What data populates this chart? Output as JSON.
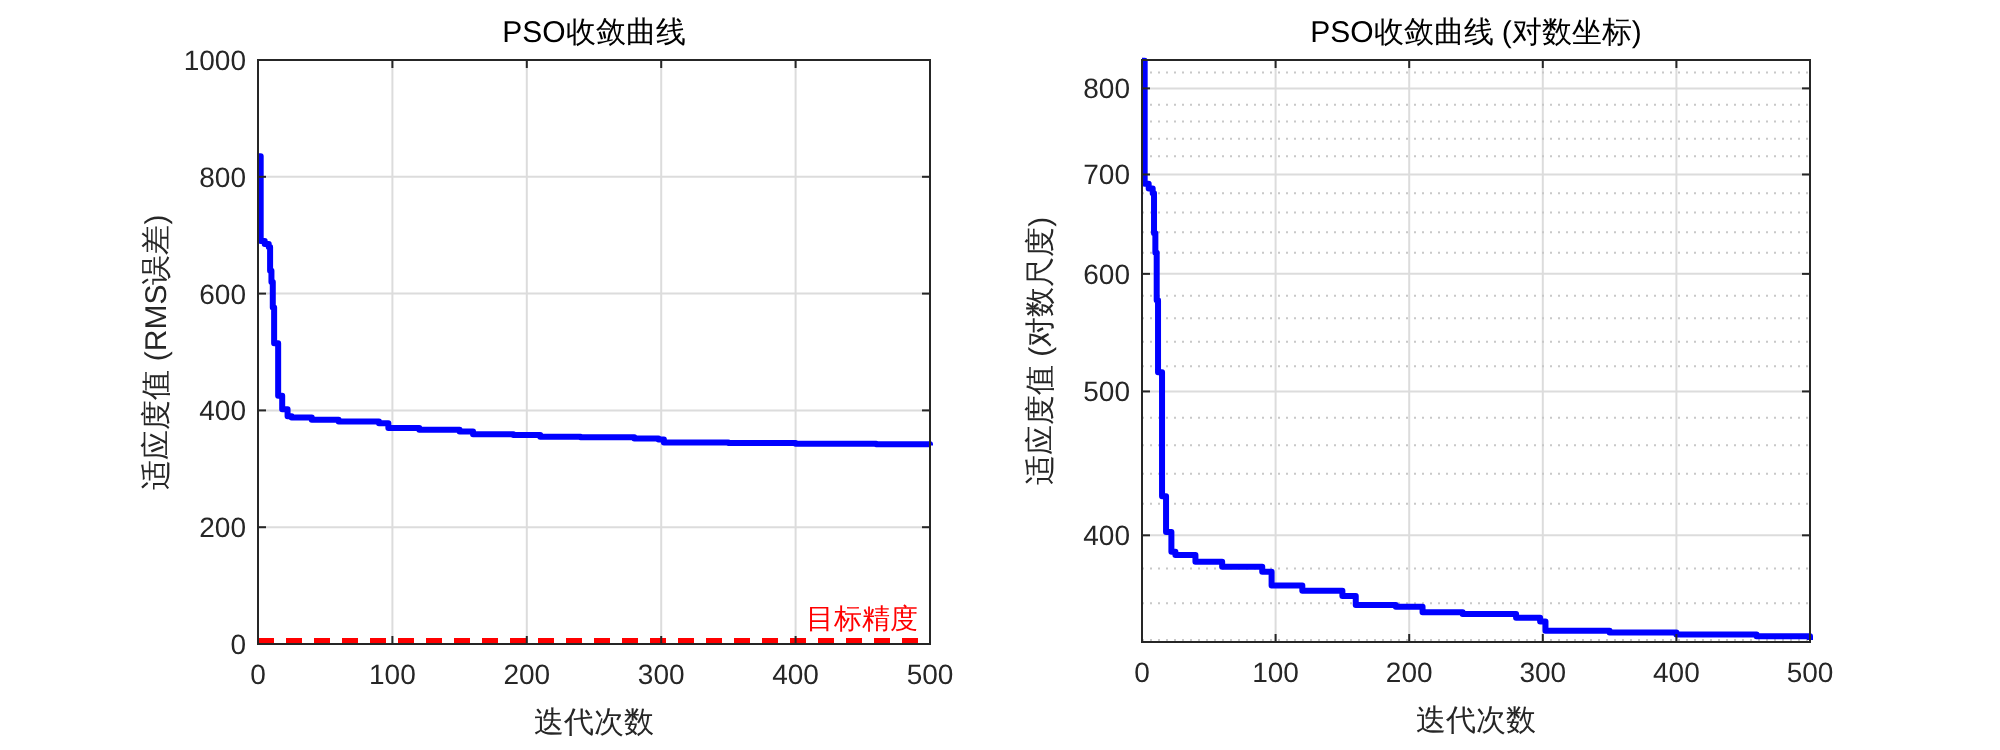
{
  "chart_data": [
    {
      "type": "step",
      "title": "PSO收敛曲线",
      "xlabel": "迭代次数",
      "ylabel": "适应度值 (RMS误差)",
      "xlim": [
        0,
        500
      ],
      "xticks": [
        0,
        100,
        200,
        300,
        400,
        500
      ],
      "ylim": [
        0,
        1000
      ],
      "yticks": [
        0,
        200,
        400,
        600,
        800,
        1000
      ],
      "grid": true,
      "series": [
        {
          "color": "#0000ff",
          "x": [
            0,
            2,
            5,
            8,
            9,
            10,
            11,
            12,
            14,
            15,
            17,
            18,
            22,
            25,
            40,
            60,
            90,
            97,
            120,
            150,
            160,
            190,
            210,
            240,
            280,
            298,
            302,
            350,
            400,
            460,
            500
          ],
          "values": [
            835,
            690,
            685,
            680,
            639,
            620,
            576,
            515,
            515,
            425,
            425,
            402,
            390,
            388,
            384,
            381,
            378,
            370,
            367,
            364,
            359,
            358,
            355,
            354,
            352,
            350,
            345,
            344,
            343,
            342,
            340
          ]
        }
      ],
      "ref_lines": [
        {
          "axis": "y",
          "value": 0,
          "label": "目标精度",
          "color": "#ff0000",
          "line_style": "dashed"
        }
      ]
    },
    {
      "type": "step",
      "title": "PSO收敛曲线 (对数坐标)",
      "xlabel": "迭代次数",
      "ylabel": "适应度值 (对数尺度)",
      "log": "y",
      "xlim": [
        0,
        500
      ],
      "xticks": [
        0,
        100,
        200,
        300,
        400,
        500
      ],
      "ylim": [
        339,
        836
      ],
      "yticks": [
        400,
        500,
        600,
        700,
        800
      ],
      "grid": true,
      "series": [
        {
          "color": "#0000ff",
          "x": [
            0,
            2,
            5,
            8,
            9,
            10,
            11,
            12,
            14,
            15,
            17,
            18,
            22,
            25,
            40,
            60,
            90,
            97,
            120,
            150,
            160,
            190,
            210,
            240,
            280,
            298,
            302,
            350,
            400,
            460,
            500
          ],
          "values": [
            835,
            690,
            685,
            680,
            639,
            620,
            576,
            515,
            515,
            425,
            425,
            402,
            390,
            388,
            384,
            381,
            378,
            370,
            367,
            364,
            359,
            358,
            355,
            354,
            352,
            350,
            345,
            344,
            343,
            342,
            340
          ]
        }
      ]
    }
  ]
}
